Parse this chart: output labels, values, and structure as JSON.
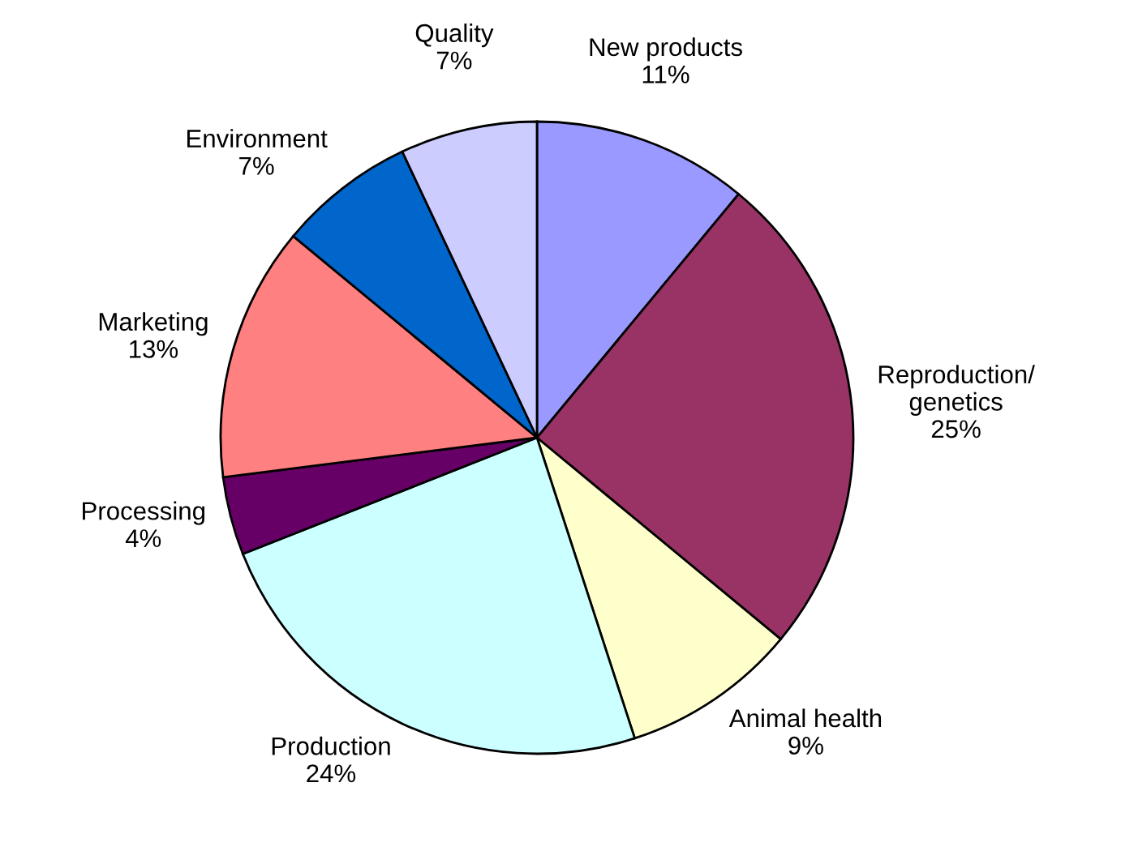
{
  "chart_data": {
    "type": "pie",
    "categories": [
      "New products",
      "Reproduction/\ngenetics",
      "Animal health",
      "Production",
      "Processing",
      "Marketing",
      "Environment",
      "Quality"
    ],
    "values": [
      11,
      25,
      9,
      24,
      4,
      13,
      7,
      7
    ],
    "value_labels": [
      "11%",
      "25%",
      "9%",
      "24%",
      "4%",
      "13%",
      "7%",
      "7%"
    ],
    "colors": [
      "#9999ff",
      "#993366",
      "#ffffcc",
      "#ccffff",
      "#660066",
      "#ff8080",
      "#0066cc",
      "#ccccff"
    ]
  }
}
